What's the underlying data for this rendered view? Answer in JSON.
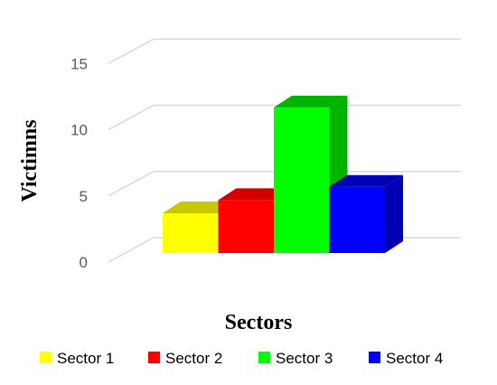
{
  "chart_data": {
    "type": "bar",
    "categories": [
      "Sector 1",
      "Sector 2",
      "Sector 3",
      "Sector 4"
    ],
    "values": [
      3,
      4,
      11,
      5
    ],
    "xlabel": "Sectors",
    "ylabel": "Victimns",
    "ylim": [
      0,
      15
    ],
    "yticks": [
      0,
      5,
      10,
      15
    ],
    "grid": true,
    "legend": "bottom",
    "colors": [
      "#ffff00",
      "#ff0000",
      "#00ff00",
      "#0000ff"
    ],
    "colors_dark": [
      "#c8c800",
      "#d40000",
      "#00b400",
      "#0000b4"
    ],
    "legend_entries": [
      "Sector 1",
      "Sector 2",
      "Sector 3",
      "Sector 4"
    ]
  }
}
